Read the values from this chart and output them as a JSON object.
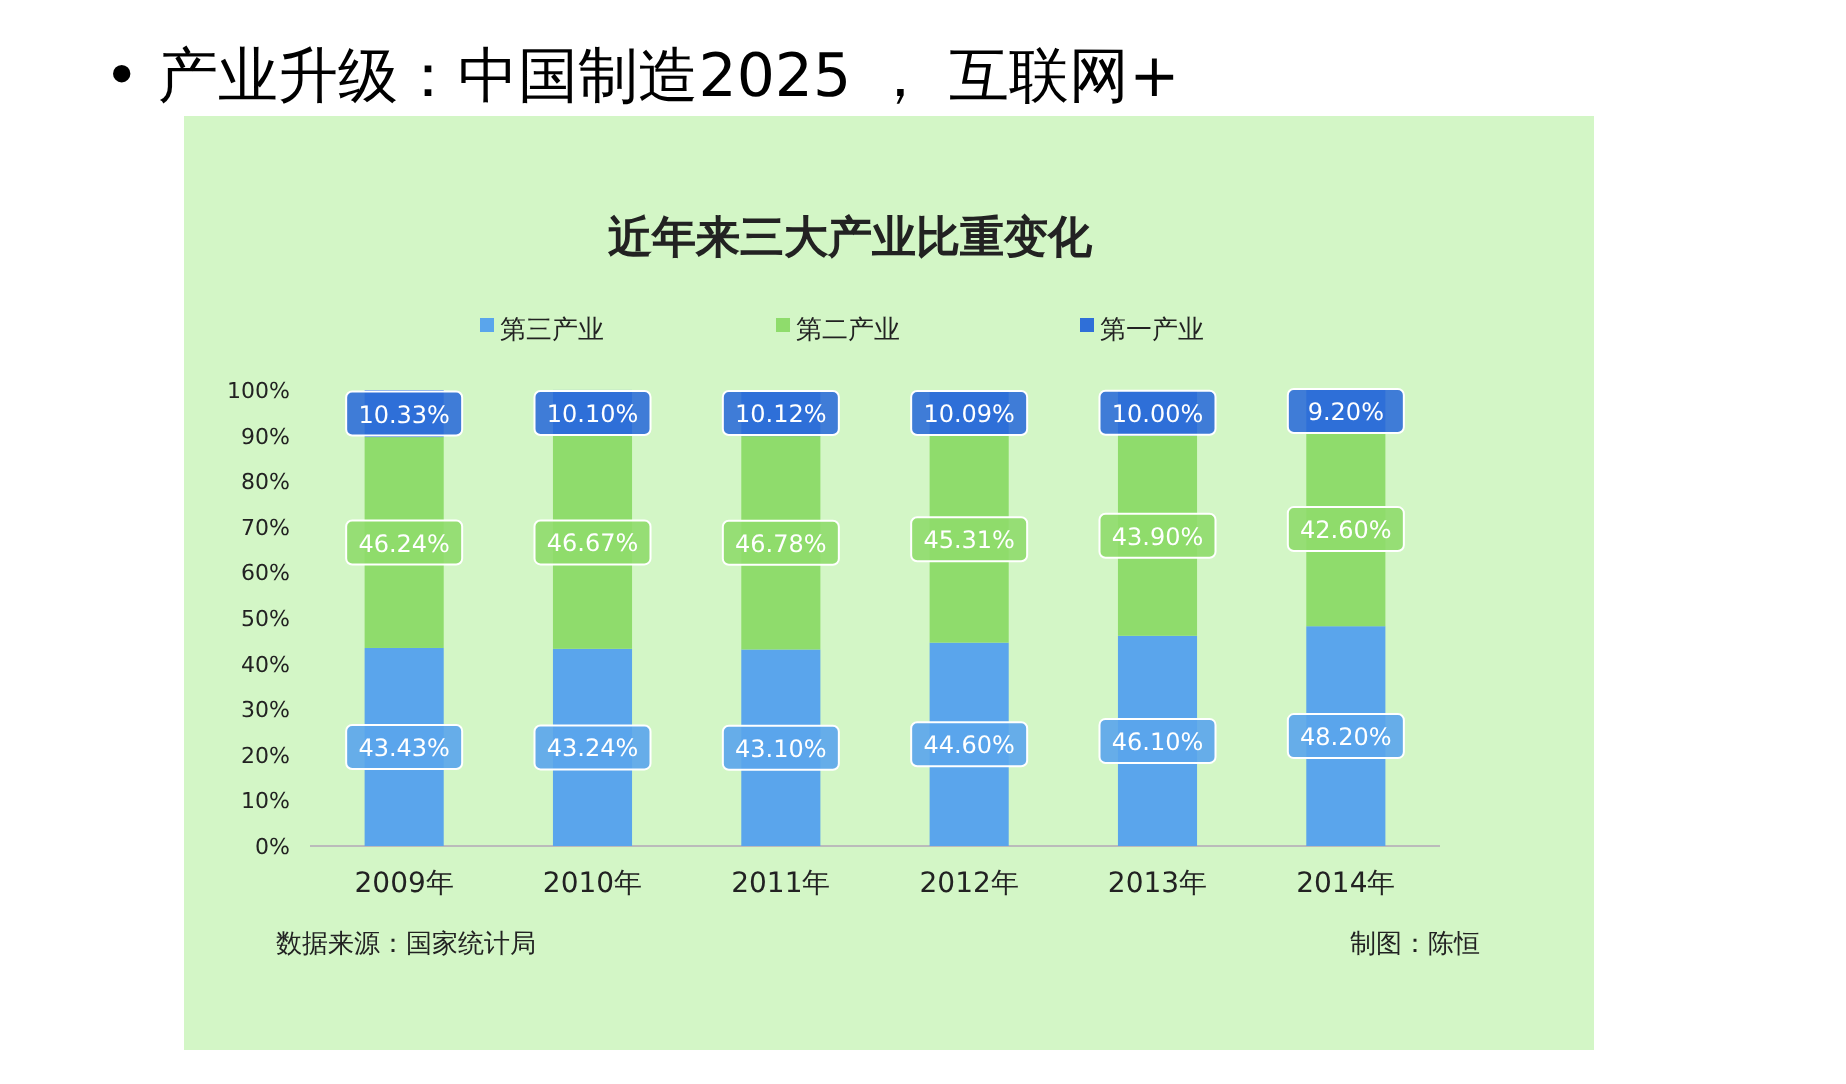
{
  "chart_data": {
    "type": "bar",
    "stacked": true,
    "title": "• 产业升级：中国制造2025 ， 互联网+",
    "subtitle": "近年来三大产业比重变化",
    "categories": [
      "2009年",
      "2010年",
      "2011年",
      "2012年",
      "2013年",
      "2014年"
    ],
    "series": [
      {
        "name": "第三产业",
        "color": "#5aa5ec",
        "values": [
          43.43,
          43.24,
          43.1,
          44.6,
          46.1,
          48.2
        ],
        "value_labels": [
          "43.43%",
          "43.24%",
          "43.10%",
          "44.60%",
          "46.10%",
          "48.20%"
        ]
      },
      {
        "name": "第二产业",
        "color": "#8fdc6c",
        "values": [
          46.24,
          46.67,
          46.78,
          45.31,
          43.9,
          42.6
        ],
        "value_labels": [
          "46.24%",
          "46.67%",
          "46.78%",
          "45.31%",
          "43.90%",
          "42.60%"
        ]
      },
      {
        "name": "第一产业",
        "color": "#2f6fd8",
        "values": [
          10.33,
          10.1,
          10.12,
          10.09,
          10.0,
          9.2
        ],
        "value_labels": [
          "10.33%",
          "10.10%",
          "10.12%",
          "10.09%",
          "10.00%",
          "9.20%"
        ]
      }
    ],
    "ylim": [
      0,
      100
    ],
    "yticks": [
      {
        "value": 0,
        "label": "0%"
      },
      {
        "value": 10,
        "label": "10%"
      },
      {
        "value": 20,
        "label": "20%"
      },
      {
        "value": 30,
        "label": "30%"
      },
      {
        "value": 40,
        "label": "40%"
      },
      {
        "value": 50,
        "label": "50%"
      },
      {
        "value": 60,
        "label": "60%"
      },
      {
        "value": 70,
        "label": "70%"
      },
      {
        "value": 80,
        "label": "80%"
      },
      {
        "value": 90,
        "label": "90%"
      },
      {
        "value": 100,
        "label": "100%"
      }
    ],
    "grid": false,
    "legend": "top",
    "annotations": [
      "数据来源：国家统计局",
      "制图：陈恒"
    ]
  }
}
